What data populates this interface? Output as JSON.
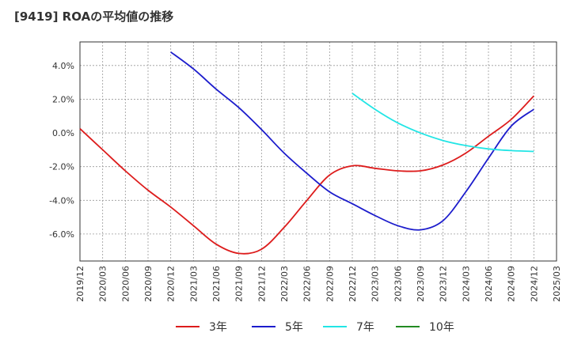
{
  "chart_data": {
    "type": "line",
    "title": "[9419]  ROAの平均値の推移",
    "xlabel": "",
    "ylabel": "",
    "ylim": [
      -7.6,
      5.4
    ],
    "xlim": [
      "2019/12",
      "2025/03"
    ],
    "grid": true,
    "legend_position": "bottom",
    "y_ticks": [
      {
        "value": 4,
        "label": "4.0%"
      },
      {
        "value": 2,
        "label": "2.0%"
      },
      {
        "value": 0,
        "label": "0.0%"
      },
      {
        "value": -2,
        "label": "-2.0%"
      },
      {
        "value": -4,
        "label": "-4.0%"
      },
      {
        "value": -6,
        "label": "-6.0%"
      }
    ],
    "x_ticks": [
      "2019/12",
      "2020/03",
      "2020/06",
      "2020/09",
      "2020/12",
      "2021/03",
      "2021/06",
      "2021/09",
      "2021/12",
      "2022/03",
      "2022/06",
      "2022/09",
      "2022/12",
      "2023/03",
      "2023/06",
      "2023/09",
      "2023/12",
      "2024/03",
      "2024/06",
      "2024/09",
      "2024/12",
      "2025/03"
    ],
    "series": [
      {
        "name": "3年",
        "color": "#dd1c1c",
        "points": [
          [
            "2019/12",
            0.25
          ],
          [
            "2020/03",
            -1.0
          ],
          [
            "2020/06",
            -2.25
          ],
          [
            "2020/09",
            -3.4
          ],
          [
            "2020/12",
            -4.4
          ],
          [
            "2021/03",
            -5.5
          ],
          [
            "2021/06",
            -6.6
          ],
          [
            "2021/09",
            -7.15
          ],
          [
            "2021/12",
            -6.9
          ],
          [
            "2022/03",
            -5.6
          ],
          [
            "2022/06",
            -4.0
          ],
          [
            "2022/09",
            -2.5
          ],
          [
            "2022/12",
            -1.95
          ],
          [
            "2023/03",
            -2.1
          ],
          [
            "2023/06",
            -2.25
          ],
          [
            "2023/09",
            -2.25
          ],
          [
            "2023/12",
            -1.9
          ],
          [
            "2024/03",
            -1.2
          ],
          [
            "2024/06",
            -0.2
          ],
          [
            "2024/09",
            0.8
          ],
          [
            "2024/12",
            2.2
          ]
        ]
      },
      {
        "name": "5年",
        "color": "#1c1ccc",
        "points": [
          [
            "2020/12",
            4.8
          ],
          [
            "2021/03",
            3.8
          ],
          [
            "2021/06",
            2.6
          ],
          [
            "2021/09",
            1.5
          ],
          [
            "2021/12",
            0.2
          ],
          [
            "2022/03",
            -1.2
          ],
          [
            "2022/06",
            -2.4
          ],
          [
            "2022/09",
            -3.5
          ],
          [
            "2022/12",
            -4.2
          ],
          [
            "2023/03",
            -4.9
          ],
          [
            "2023/06",
            -5.5
          ],
          [
            "2023/09",
            -5.75
          ],
          [
            "2023/12",
            -5.2
          ],
          [
            "2024/03",
            -3.5
          ],
          [
            "2024/06",
            -1.5
          ],
          [
            "2024/09",
            0.4
          ],
          [
            "2024/12",
            1.4
          ]
        ]
      },
      {
        "name": "7年",
        "color": "#22e5e5",
        "points": [
          [
            "2022/12",
            2.35
          ],
          [
            "2023/03",
            1.4
          ],
          [
            "2023/06",
            0.6
          ],
          [
            "2023/09",
            0.0
          ],
          [
            "2023/12",
            -0.45
          ],
          [
            "2024/03",
            -0.75
          ],
          [
            "2024/06",
            -0.95
          ],
          [
            "2024/09",
            -1.05
          ],
          [
            "2024/12",
            -1.1
          ]
        ]
      },
      {
        "name": "10年",
        "color": "#228b22",
        "points": []
      }
    ]
  }
}
